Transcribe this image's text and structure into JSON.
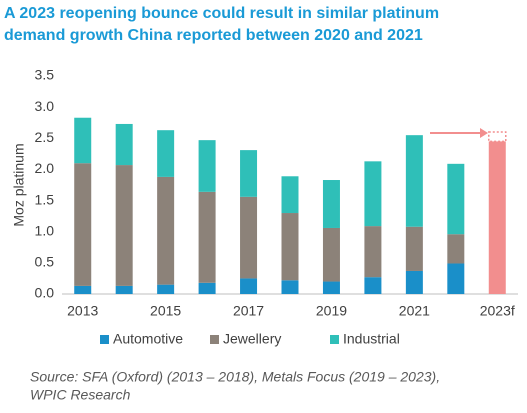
{
  "chart_data": {
    "type": "stacked_bar",
    "title": [
      "A 2023 reopening bounce could result in similar platinum",
      "demand growth China reported between 2020 and 2021"
    ],
    "y_label": "Moz platinum",
    "categories": [
      "2013",
      null,
      "2015",
      null,
      "2017",
      null,
      "2019",
      null,
      "2021",
      null,
      "2023f"
    ],
    "series": [
      {
        "name": "Automotive",
        "color": "#1a8fc9",
        "values": [
          0.13,
          0.13,
          0.15,
          0.18,
          0.25,
          0.22,
          0.2,
          0.27,
          0.37,
          0.49,
          null
        ]
      },
      {
        "name": "Jewellery",
        "color": "#8c8279",
        "values": [
          1.97,
          1.94,
          1.73,
          1.46,
          1.31,
          1.08,
          0.86,
          0.82,
          0.71,
          0.47,
          null
        ]
      },
      {
        "name": "Industrial",
        "color": "#2fbfb8",
        "values": [
          0.73,
          0.66,
          0.75,
          0.83,
          0.75,
          0.59,
          0.77,
          1.04,
          1.47,
          1.13,
          null
        ]
      }
    ],
    "forecast": {
      "color": "#f28e8e",
      "value": 2.45,
      "upper": 2.6
    },
    "ylim": [
      0,
      3.5
    ],
    "yticks": [
      {
        "value": 0,
        "label": "0.0"
      },
      {
        "value": 0.5,
        "label": "0.5"
      },
      {
        "value": 1,
        "label": "1.0"
      },
      {
        "value": 1.5,
        "label": "1.5"
      },
      {
        "value": 2,
        "label": "2.0"
      },
      {
        "value": 2.5,
        "label": "2.5"
      },
      {
        "value": 3,
        "label": "3.0"
      },
      {
        "value": 3.5,
        "label": "3.5"
      }
    ],
    "source": [
      "Source: SFA (Oxford) (2013 – 2018), Metals Focus (2019 – 2023),",
      "WPIC Research"
    ]
  }
}
